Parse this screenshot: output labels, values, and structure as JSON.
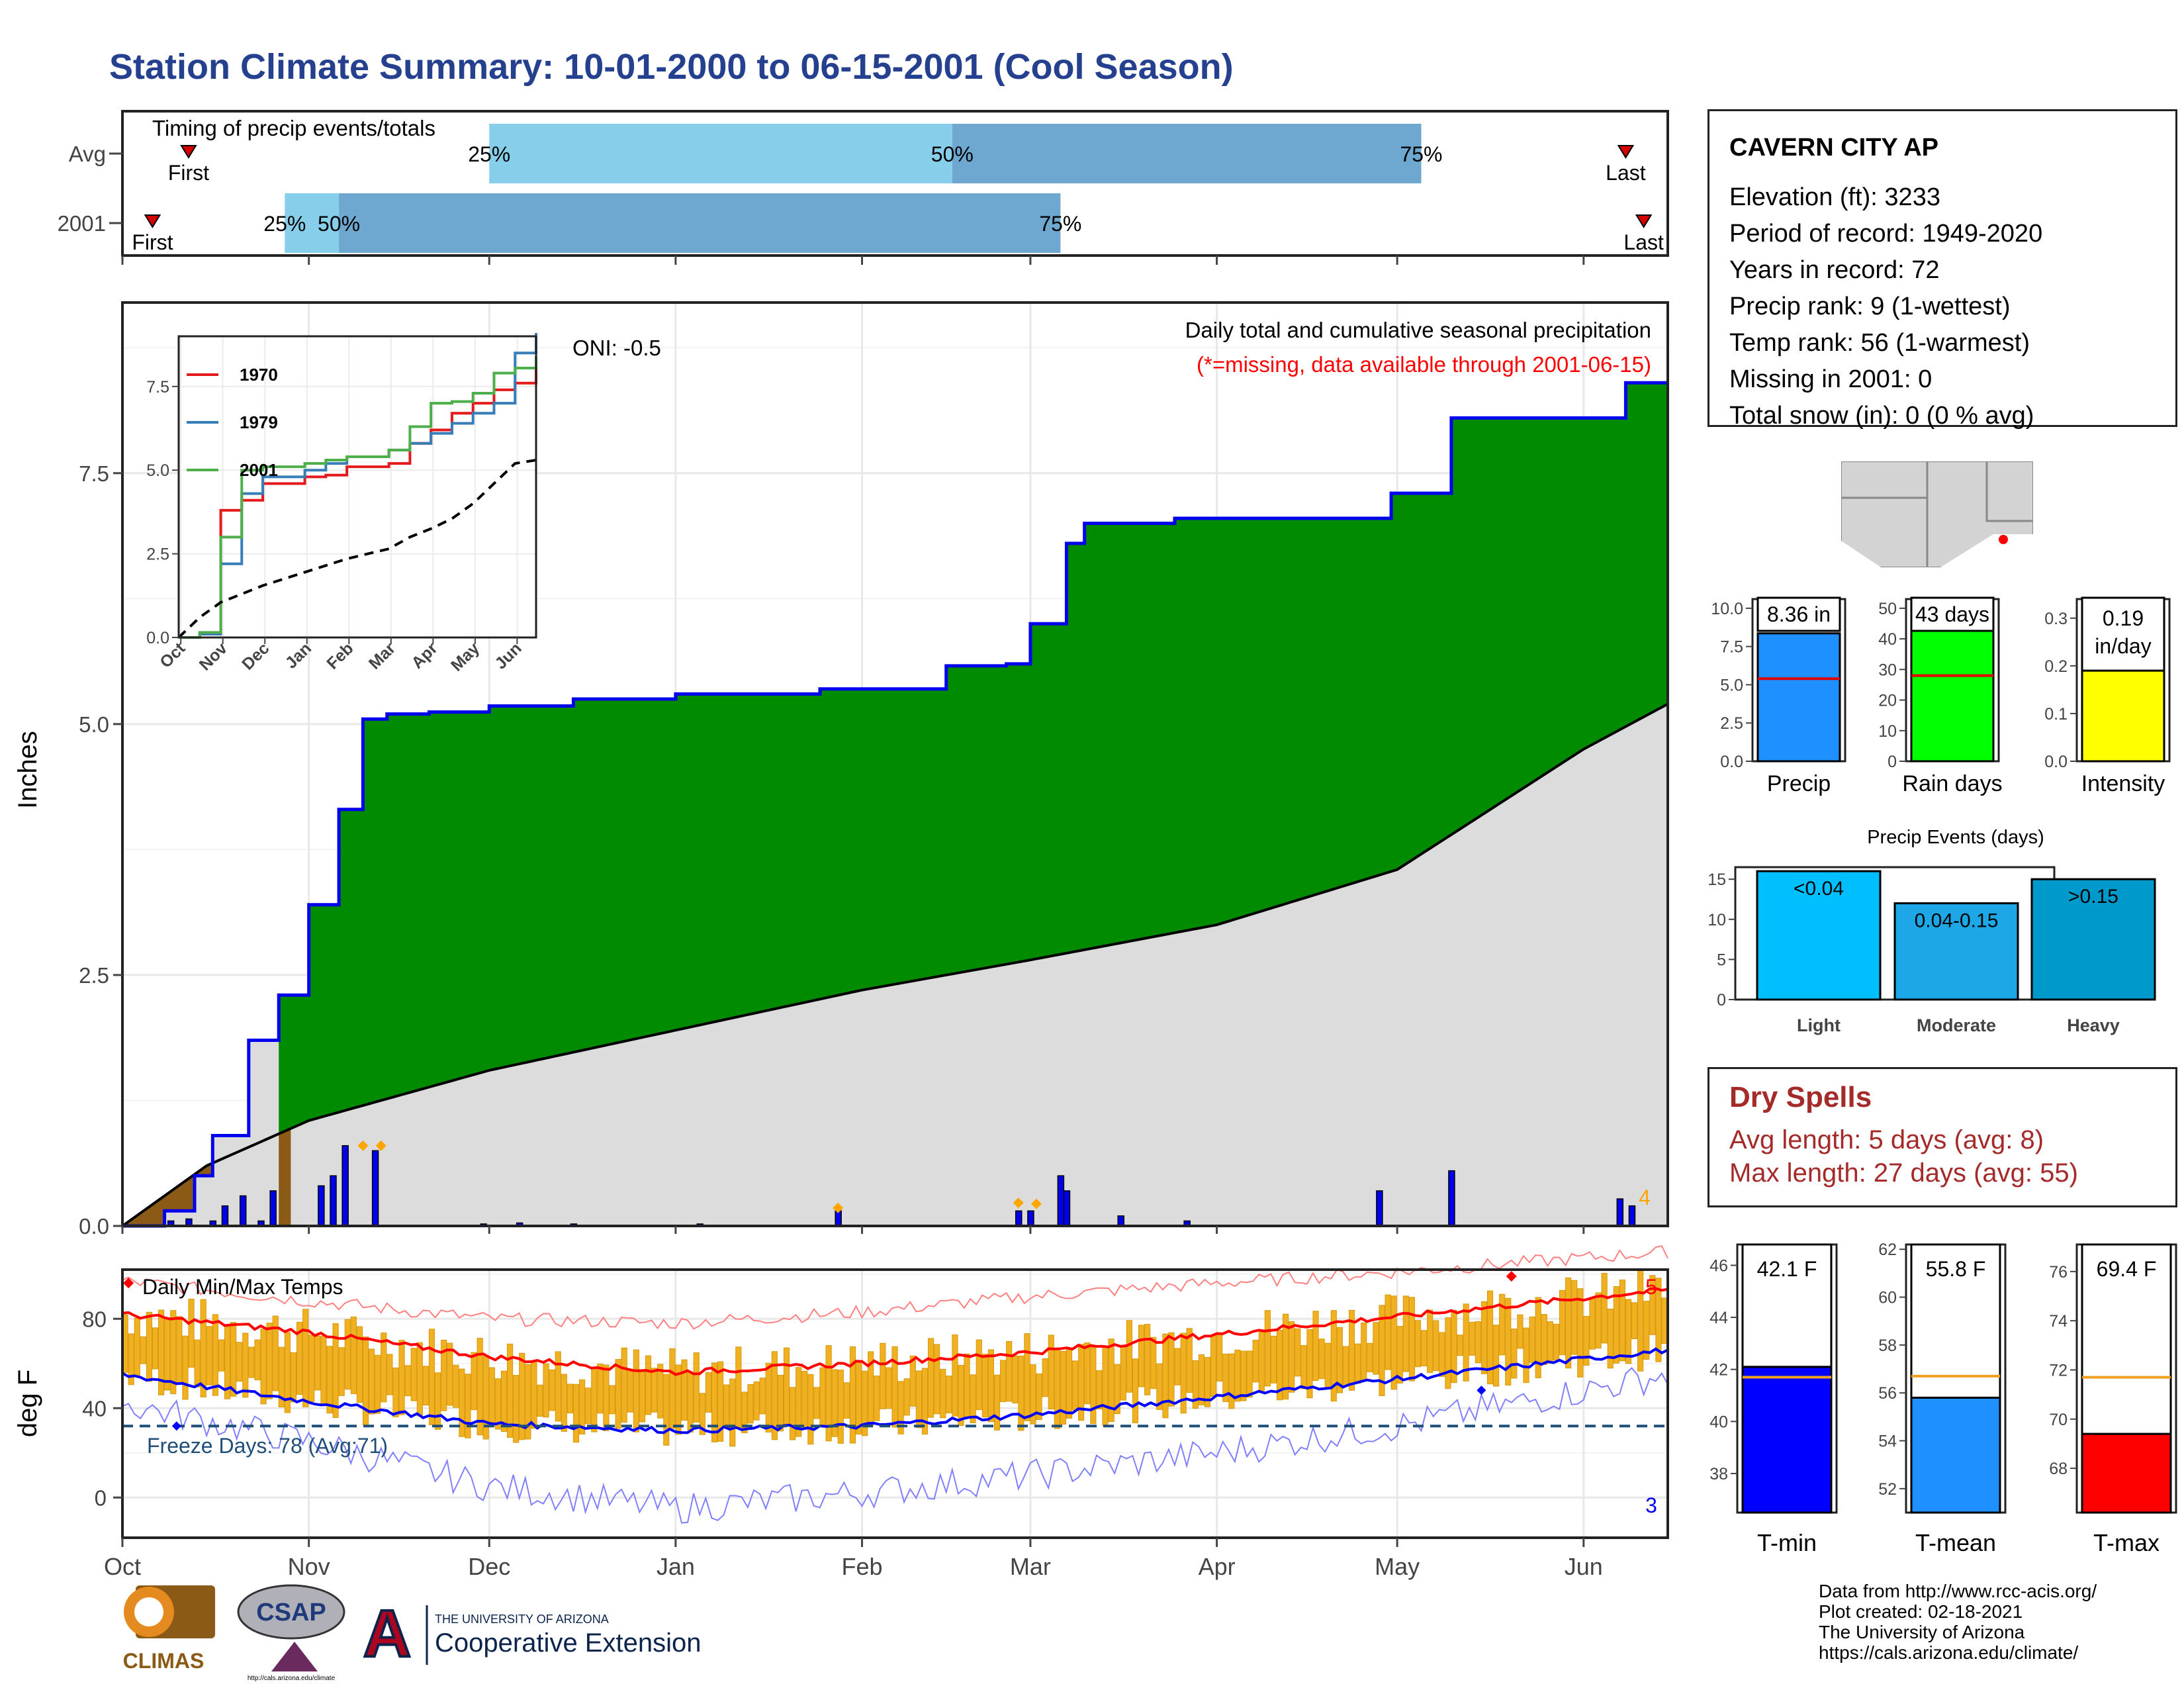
{
  "title": "Station Climate Summary: 10-01-2000 to 06-15-2001 (Cool Season)",
  "colors": {
    "title": "#24408e",
    "green": "#008b00",
    "brown": "#8b5a16",
    "grey_fill": "#dcdcdc",
    "blue_line": "#0000ee",
    "avg_light": "#87ceeb",
    "avg_dark": "#6ea8d0",
    "orange": "#f0b020",
    "red": "#ff0000",
    "freeze": "#1f4e79"
  },
  "timing": {
    "label": "Timing of precip events/totals",
    "rows": [
      {
        "name": "Avg",
        "first_label": "First",
        "last_label": "Last",
        "first_date": "2000-10-12",
        "last_date": "2001-06-08",
        "p25": "2000-12-01",
        "p50": "2001-02-16",
        "p75": "2001-05-05",
        "p25_label": "25%",
        "p50_label": "50%",
        "p75_label": "75%"
      },
      {
        "name": "2001",
        "first_label": "First",
        "last_label": "Last",
        "first_date": "2000-10-06",
        "last_date": "2001-06-11",
        "p25": "2000-10-28",
        "p50": "2000-11-06",
        "p75": "2001-03-06",
        "p25_label": "25%",
        "p50_label": "50%",
        "p75_label": "75%"
      }
    ]
  },
  "precip_panel": {
    "ylabel": "Inches",
    "y_ticks": [
      "0.0",
      "2.5",
      "5.0",
      "7.5"
    ],
    "oni": "ONI: -0.5",
    "header": "Daily total and cumulative seasonal precipitation",
    "subheader": "(*=missing, data available through 2001-06-15)",
    "corner_count": "4"
  },
  "inset": {
    "y_ticks": [
      "0.0",
      "2.5",
      "5.0",
      "7.5"
    ],
    "x_ticks": [
      "Oct",
      "Nov",
      "Dec",
      "Jan",
      "Feb",
      "Mar",
      "Apr",
      "May",
      "Jun"
    ],
    "legend": [
      {
        "label": "1970",
        "color": "#e41a1c"
      },
      {
        "label": "1979",
        "color": "#377eb8"
      },
      {
        "label": "2001",
        "color": "#4daf4a"
      }
    ]
  },
  "temp_panel": {
    "ylabel": "deg F",
    "label": "Daily Min/Max Temps",
    "y_ticks": [
      "0",
      "40",
      "80"
    ],
    "freeze_label": "Freeze Days: 78 (Avg:71)",
    "count_max": "5",
    "count_min": "3"
  },
  "x_months": [
    "Oct",
    "Nov",
    "Dec",
    "Jan",
    "Feb",
    "Mar",
    "Apr",
    "May",
    "Jun"
  ],
  "station": {
    "name": "CAVERN CITY AP",
    "lines": [
      "Elevation (ft): 3233",
      "Period of record: 1949-2020",
      "Years in record: 72",
      "Precip rank: 9 (1-wettest)",
      "Temp rank: 56 (1-warmest)",
      "Missing in 2001: 0",
      "Total snow (in): 0 (0 % avg)"
    ]
  },
  "dry_spells": {
    "title": "Dry Spells",
    "lines": [
      "Avg length: 5 days (avg: 8)",
      "Max length: 27 days (avg: 55)"
    ]
  },
  "mini_bars": [
    {
      "label": "Precip",
      "value_label": "8.36 in",
      "value": 8.36,
      "avg": 5.4,
      "ymax": 10.6,
      "ticks": [
        "0.0",
        "2.5",
        "5.0",
        "7.5",
        "10.0"
      ],
      "tickvals": [
        0,
        2.5,
        5,
        7.5,
        10
      ],
      "color": "#1e90ff"
    },
    {
      "label": "Rain days",
      "value_label": "43 days",
      "value": 43,
      "avg": 28,
      "ymax": 53,
      "ticks": [
        "0",
        "10",
        "20",
        "30",
        "40",
        "50"
      ],
      "tickvals": [
        0,
        10,
        20,
        30,
        40,
        50
      ],
      "color": "#00ff00"
    },
    {
      "label": "Intensity",
      "value_label": "0.19 in/day",
      "value": 0.19,
      "avg": 0.195,
      "ymax": 0.34,
      "ticks": [
        "0.0",
        "0.1",
        "0.2",
        "0.3"
      ],
      "tickvals": [
        0,
        0.1,
        0.2,
        0.3
      ],
      "color": "#ffff00"
    }
  ],
  "precip_events": {
    "title": "Precip Events (days)",
    "ticks": [
      "0",
      "5",
      "10",
      "15"
    ],
    "bars": [
      {
        "category": "Light",
        "bar_label": "<0.04",
        "value": 16,
        "color": "#00bfff"
      },
      {
        "category": "Moderate",
        "bar_label": "0.04-0.15",
        "value": 12,
        "color": "#1ea7e6"
      },
      {
        "category": "Heavy",
        "bar_label": ">0.15",
        "value": 15,
        "color": "#0099cc"
      }
    ]
  },
  "temp_bars": [
    {
      "label": "T-min",
      "value_label": "42.1 F",
      "value": 42.1,
      "avg": 41.7,
      "ylim": [
        36.5,
        46.8
      ],
      "ticks": [
        "38",
        "40",
        "42",
        "44",
        "46"
      ],
      "tickvals": [
        38,
        40,
        42,
        44,
        46
      ],
      "color": "#0000ff"
    },
    {
      "label": "T-mean",
      "value_label": "55.8 F",
      "value": 55.8,
      "avg": 56.7,
      "ylim": [
        51,
        62.2
      ],
      "ticks": [
        "52",
        "54",
        "56",
        "58",
        "60",
        "62"
      ],
      "tickvals": [
        52,
        54,
        56,
        58,
        60,
        62
      ],
      "color": "#1e90ff"
    },
    {
      "label": "T-max",
      "value_label": "69.4 F",
      "value": 69.4,
      "avg": 71.7,
      "ylim": [
        66.2,
        77.1
      ],
      "ticks": [
        "68",
        "70",
        "72",
        "74",
        "76"
      ],
      "tickvals": [
        68,
        70,
        72,
        74,
        76
      ],
      "color": "#ff0000"
    }
  ],
  "footer": [
    "Data from http://www.rcc-acis.org/",
    "Plot created: 02-18-2021",
    "The University of Arizona",
    "https://cals.arizona.edu/climate/"
  ],
  "logos": {
    "climas": "CLIMAS",
    "csap": "CSAP",
    "csap_url": "http://cals.arizona.edu/climate",
    "ua_top": "THE UNIVERSITY OF ARIZONA",
    "ua_bottom": "Cooperative Extension"
  },
  "chart_data": [
    {
      "type": "area",
      "title": "Daily total and cumulative seasonal precipitation",
      "ylabel": "Inches",
      "ylim": [
        0,
        9.2
      ],
      "x_start": "2000-10-01",
      "x_end": "2001-06-15",
      "series": [
        {
          "name": "2001",
          "x": [
            "2000-10-01",
            "2000-10-08",
            "2000-10-13",
            "2000-10-16",
            "2000-10-22",
            "2000-10-27",
            "2000-11-01",
            "2000-11-06",
            "2000-11-10",
            "2000-11-14",
            "2000-11-21",
            "2000-12-01",
            "2000-12-15",
            "2001-01-01",
            "2001-01-25",
            "2001-02-15",
            "2001-02-25",
            "2001-03-01",
            "2001-03-07",
            "2001-03-10",
            "2001-03-25",
            "2001-04-15",
            "2001-04-30",
            "2001-05-10",
            "2001-06-01",
            "2001-06-08",
            "2001-06-15"
          ],
          "values": [
            0.0,
            0.15,
            0.5,
            0.9,
            1.85,
            2.3,
            3.2,
            4.15,
            5.05,
            5.1,
            5.12,
            5.18,
            5.25,
            5.3,
            5.35,
            5.58,
            5.6,
            6.0,
            6.8,
            7.0,
            7.05,
            7.05,
            7.3,
            8.05,
            8.05,
            8.4,
            8.4
          ]
        },
        {
          "name": "Avg",
          "x": [
            "2000-10-01",
            "2000-10-15",
            "2000-11-01",
            "2000-12-01",
            "2001-01-01",
            "2001-02-01",
            "2001-03-01",
            "2001-04-01",
            "2001-05-01",
            "2001-06-01",
            "2001-06-15"
          ],
          "values": [
            0.0,
            0.6,
            1.05,
            1.55,
            1.95,
            2.35,
            2.65,
            3.0,
            3.55,
            4.75,
            5.2
          ]
        }
      ],
      "daily": [
        {
          "x": "2000-10-09",
          "value": 0.05
        },
        {
          "x": "2000-10-12",
          "value": 0.07
        },
        {
          "x": "2000-10-16",
          "value": 0.05
        },
        {
          "x": "2000-10-18",
          "value": 0.2
        },
        {
          "x": "2000-10-21",
          "value": 0.3
        },
        {
          "x": "2000-10-24",
          "value": 0.05
        },
        {
          "x": "2000-10-26",
          "value": 0.35
        },
        {
          "x": "2000-11-03",
          "value": 0.4
        },
        {
          "x": "2000-11-05",
          "value": 0.5
        },
        {
          "x": "2000-11-07",
          "value": 0.8
        },
        {
          "x": "2000-11-12",
          "value": 0.75
        },
        {
          "x": "2000-11-30",
          "value": 0.02
        },
        {
          "x": "2000-12-06",
          "value": 0.03
        },
        {
          "x": "2000-12-15",
          "value": 0.02
        },
        {
          "x": "2001-01-05",
          "value": 0.02
        },
        {
          "x": "2001-01-28",
          "value": 0.15
        },
        {
          "x": "2001-02-27",
          "value": 0.15
        },
        {
          "x": "2001-03-01",
          "value": 0.15
        },
        {
          "x": "2001-03-06",
          "value": 0.5
        },
        {
          "x": "2001-03-07",
          "value": 0.35
        },
        {
          "x": "2001-03-16",
          "value": 0.1
        },
        {
          "x": "2001-03-27",
          "value": 0.05
        },
        {
          "x": "2001-04-28",
          "value": 0.35
        },
        {
          "x": "2001-05-10",
          "value": 0.55
        },
        {
          "x": "2001-06-07",
          "value": 0.27
        },
        {
          "x": "2001-06-09",
          "value": 0.2
        }
      ]
    },
    {
      "type": "line",
      "title": "",
      "x_start": "2000-10-01",
      "x_end": "2001-06-15",
      "ylim": [
        0,
        9
      ],
      "series": [
        {
          "name": "1970",
          "x": [
            0,
            0.5,
            1,
            1.5,
            2,
            3,
            3.5,
            4,
            5,
            5.5,
            6,
            6.5,
            7,
            7.5,
            8,
            8.5
          ],
          "values": [
            0,
            0.1,
            3.8,
            4.1,
            4.6,
            4.8,
            4.85,
            5.1,
            5.2,
            5.8,
            6.2,
            6.7,
            7.0,
            7.4,
            7.6,
            8.3
          ]
        },
        {
          "name": "1979",
          "x": [
            0,
            0.5,
            1,
            1.5,
            2,
            3,
            3.5,
            4,
            5,
            5.5,
            6,
            6.5,
            7,
            7.5,
            8,
            8.5
          ],
          "values": [
            0,
            0.1,
            2.2,
            4.3,
            4.8,
            5.0,
            5.2,
            5.4,
            5.6,
            5.8,
            6.1,
            6.4,
            6.7,
            7.0,
            8.5,
            9.1
          ]
        },
        {
          "name": "2001",
          "x": [
            0,
            0.5,
            1,
            1.5,
            2,
            3,
            3.5,
            4,
            5,
            5.5,
            6,
            6.5,
            7,
            7.5,
            8,
            8.5
          ],
          "values": [
            0,
            0.15,
            3.0,
            5.0,
            5.1,
            5.2,
            5.3,
            5.4,
            5.6,
            6.3,
            7.0,
            7.05,
            7.3,
            7.9,
            8.05,
            8.4
          ]
        },
        {
          "name": "Avg",
          "x": [
            0,
            0.5,
            1,
            1.5,
            2,
            3,
            3.5,
            4,
            5,
            5.5,
            6,
            6.5,
            7,
            7.5,
            8,
            8.5
          ],
          "values": [
            0,
            0.6,
            1.05,
            1.3,
            1.55,
            1.95,
            2.15,
            2.35,
            2.65,
            3.0,
            3.25,
            3.55,
            4.0,
            4.6,
            5.2,
            5.3
          ]
        }
      ]
    },
    {
      "type": "line",
      "title": "Daily Min/Max Temps",
      "ylabel": "deg F",
      "ylim": [
        -18,
        102
      ],
      "x_start": "2000-10-01",
      "x_end": "2001-06-15",
      "freeze_line": 32,
      "series": [
        {
          "name": "Avg Max",
          "x": [
            "2000-10-01",
            "2000-11-01",
            "2000-12-01",
            "2001-01-01",
            "2001-02-01",
            "2001-03-01",
            "2001-04-01",
            "2001-05-01",
            "2001-06-15"
          ],
          "values": [
            82,
            74,
            63,
            56,
            60,
            65,
            73,
            81,
            93
          ]
        },
        {
          "name": "Avg Min",
          "x": [
            "2000-10-01",
            "2000-11-01",
            "2000-12-01",
            "2001-01-01",
            "2001-02-01",
            "2001-03-01",
            "2001-04-01",
            "2001-05-01",
            "2001-06-15"
          ],
          "values": [
            55,
            43,
            33,
            30,
            32,
            37,
            45,
            53,
            66
          ]
        },
        {
          "name": "Record Max",
          "x": [
            "2000-10-01",
            "2000-11-01",
            "2000-12-01",
            "2001-01-01",
            "2001-02-01",
            "2001-03-01",
            "2001-04-01",
            "2001-05-01",
            "2001-06-15"
          ],
          "values": [
            97,
            88,
            80,
            78,
            83,
            90,
            96,
            101,
            110
          ]
        },
        {
          "name": "Record Min",
          "x": [
            "2000-10-01",
            "2000-11-01",
            "2000-12-01",
            "2001-01-01",
            "2001-02-01",
            "2001-03-01",
            "2001-04-01",
            "2001-05-01",
            "2001-06-15"
          ],
          "values": [
            42,
            25,
            5,
            -5,
            2,
            10,
            20,
            32,
            55
          ]
        }
      ]
    },
    {
      "type": "bar",
      "title": "Precip Events (days)",
      "categories": [
        "Light",
        "Moderate",
        "Heavy"
      ],
      "values": [
        16,
        12,
        15
      ],
      "ylim": [
        0,
        16.5
      ]
    }
  ]
}
